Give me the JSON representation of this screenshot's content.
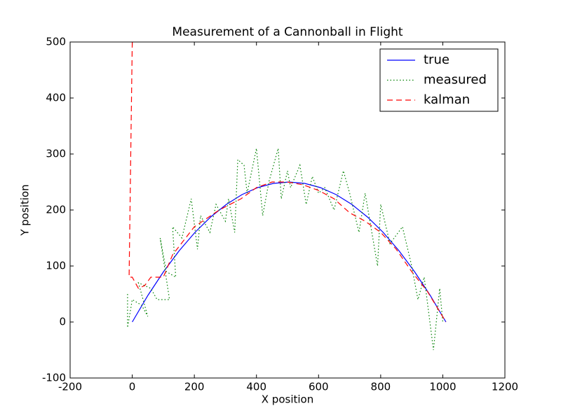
{
  "chart_data": {
    "type": "line",
    "title": "Measurement of a Cannonball in Flight",
    "x_label": "X position",
    "y_label": "Y position",
    "xlim": [
      -200,
      1200
    ],
    "ylim": [
      -100,
      500
    ],
    "xticks": [
      -200,
      0,
      200,
      400,
      600,
      800,
      1000,
      1200
    ],
    "yticks": [
      -100,
      0,
      100,
      200,
      300,
      400,
      500
    ],
    "grid": false,
    "legend": "upper right",
    "series": [
      {
        "name": "true",
        "color": "#0000ff",
        "linestyle": "solid",
        "x": [
          0,
          50.5,
          101,
          151.5,
          202,
          252.5,
          303,
          353.5,
          404,
          454.5,
          505,
          555.5,
          606,
          656.5,
          707,
          757.5,
          808,
          858.5,
          909,
          959.5,
          1010
        ],
        "values": [
          0,
          47.5,
          90,
          127.5,
          160,
          187.5,
          210,
          227.5,
          240,
          247.5,
          250,
          247.5,
          240,
          227.5,
          210,
          187.5,
          160,
          127.5,
          90,
          47.5,
          0
        ]
      },
      {
        "name": "measured",
        "color": "#008000",
        "linestyle": "dotted",
        "x": [
          -15,
          -15,
          0,
          30,
          50,
          20,
          60,
          80,
          120,
          90,
          110,
          140,
          130,
          160,
          190,
          210,
          220,
          250,
          270,
          300,
          310,
          330,
          340,
          360,
          370,
          400,
          420,
          440,
          470,
          480,
          500,
          510,
          540,
          560,
          580,
          600,
          620,
          650,
          680,
          700,
          730,
          750,
          790,
          800,
          830,
          870,
          900,
          920,
          940,
          970,
          990,
          1000
        ],
        "values": [
          50,
          -10,
          40,
          30,
          10,
          70,
          60,
          40,
          40,
          150,
          90,
          80,
          170,
          150,
          220,
          130,
          190,
          160,
          210,
          180,
          220,
          160,
          290,
          280,
          230,
          310,
          190,
          250,
          310,
          220,
          270,
          240,
          280,
          210,
          260,
          230,
          240,
          200,
          270,
          230,
          160,
          230,
          100,
          210,
          140,
          170,
          100,
          40,
          80,
          -50,
          60,
          0
        ]
      },
      {
        "name": "kalman",
        "color": "#ff0000",
        "linestyle": "dashed",
        "x": [
          0,
          -10,
          0,
          20,
          40,
          60,
          100,
          130,
          200,
          280,
          350,
          400,
          450,
          500,
          550,
          600,
          650,
          700,
          750,
          800,
          850,
          900,
          950,
          1010
        ],
        "values": [
          500,
          80,
          80,
          60,
          65,
          80,
          80,
          120,
          170,
          200,
          220,
          240,
          250,
          250,
          245,
          235,
          220,
          195,
          180,
          160,
          130,
          90,
          55,
          0
        ]
      }
    ]
  }
}
